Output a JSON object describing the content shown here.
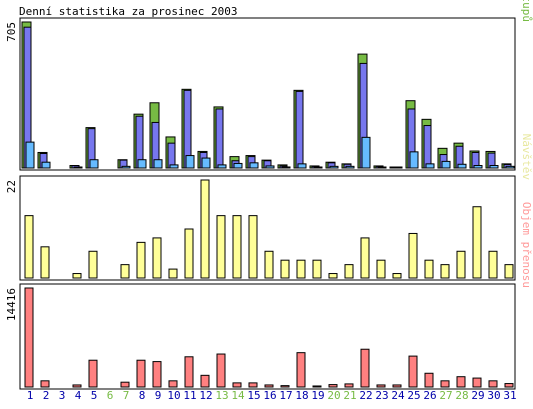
{
  "chart_data": {
    "type": "bar",
    "title": "Denní statistika za prosinec 2003",
    "categories": [
      "1",
      "2",
      "3",
      "4",
      "5",
      "6",
      "7",
      "8",
      "9",
      "10",
      "11",
      "12",
      "13",
      "14",
      "15",
      "16",
      "17",
      "18",
      "19",
      "20",
      "21",
      "22",
      "23",
      "24",
      "25",
      "26",
      "27",
      "28",
      "29",
      "30",
      "31"
    ],
    "weekend_days": [
      "6",
      "7",
      "13",
      "14",
      "20",
      "21",
      "27",
      "28"
    ],
    "panels": [
      {
        "id": "top",
        "ymax_label": "705",
        "ymax": 705,
        "right_label_parts": [
          {
            "text": "Stránek",
            "color": "#66BBFF"
          },
          {
            "text": "/",
            "color": "#444444"
          },
          {
            "text": "Souborů",
            "color": "#7777EE"
          },
          {
            "text": "/",
            "color": "#444444"
          },
          {
            "text": "Přístupů",
            "color": "#77BB44"
          }
        ],
        "series": [
          {
            "name": "Přístupů",
            "color": "#77BB44",
            "values": [
              705,
              75,
              0,
              12,
              195,
              0,
              40,
              260,
              315,
              150,
              380,
              80,
              295,
              55,
              60,
              38,
              15,
              375,
              10,
              28,
              20,
              550,
              10,
              3,
              325,
              235,
              95,
              120,
              82,
              80,
              20
            ]
          },
          {
            "name": "Souborů",
            "color": "#7777EE",
            "values": [
              680,
              70,
              0,
              12,
              190,
              0,
              38,
              250,
              220,
              120,
              375,
              75,
              285,
              35,
              55,
              35,
              10,
              370,
              8,
              25,
              18,
              505,
              8,
              3,
              285,
              205,
              65,
              105,
              75,
              72,
              17
            ]
          },
          {
            "name": "Stránek",
            "color": "#66BBFF",
            "values": [
              125,
              28,
              0,
              2,
              40,
              0,
              8,
              40,
              40,
              15,
              60,
              48,
              15,
              22,
              25,
              10,
              5,
              20,
              2,
              8,
              8,
              148,
              3,
              1,
              78,
              20,
              32,
              18,
              12,
              12,
              8
            ]
          }
        ]
      },
      {
        "id": "middle",
        "ymax_label": "22",
        "ymax": 22,
        "right_label_parts": [
          {
            "text": "Návštěv",
            "color": "#E8E8A0"
          }
        ],
        "series": [
          {
            "name": "Návštěv",
            "color": "#FFFF99",
            "values": [
              14,
              7,
              0,
              1,
              6,
              0,
              3,
              8,
              9,
              2,
              11,
              22,
              14,
              14,
              14,
              6,
              4,
              4,
              4,
              1,
              3,
              9,
              4,
              1,
              10,
              4,
              3,
              6,
              16,
              6,
              3
            ]
          }
        ]
      },
      {
        "id": "bottom",
        "ymax_label": "14416",
        "ymax": 14416,
        "right_label_parts": [
          {
            "text": "Objem přenosu",
            "color": "#FF9999"
          }
        ],
        "series": [
          {
            "name": "Objem přenosu",
            "color": "#FF8080",
            "values": [
              14416,
              900,
              0,
              300,
              3900,
              0,
              700,
              3900,
              3700,
              900,
              4400,
              1700,
              4800,
              600,
              600,
              300,
              200,
              5000,
              150,
              350,
              450,
              5500,
              300,
              300,
              4500,
              2000,
              900,
              1500,
              1300,
              900,
              500
            ]
          }
        ]
      }
    ],
    "colors": {
      "frame": "#000000",
      "weekday_label": "#0000AA",
      "weekend_label": "#77BB44",
      "shadow": "#000000"
    }
  }
}
